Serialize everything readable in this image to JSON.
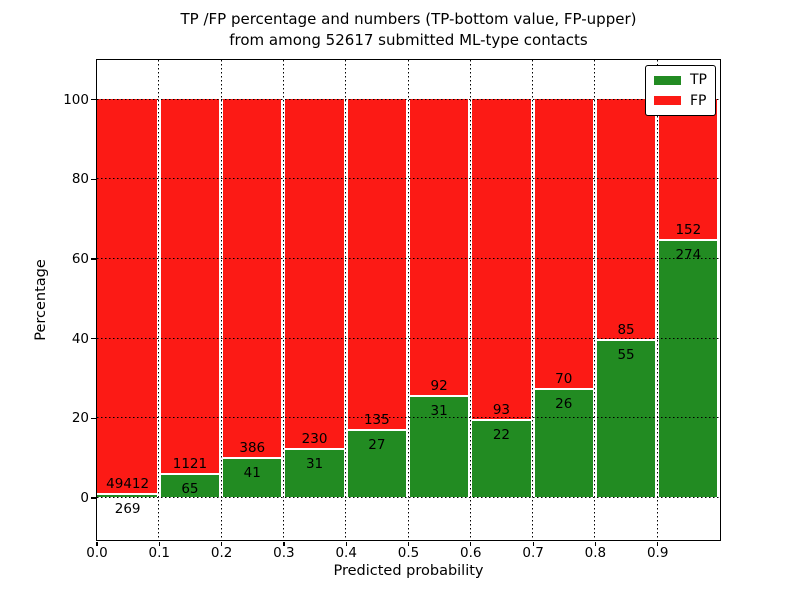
{
  "title": {
    "line1": "TP /FP percentage and numbers (TP-bottom value, FP-upper)",
    "line2": "from among 52617 submitted ML-type contacts"
  },
  "chart_data": {
    "type": "bar",
    "stacked": true,
    "total_submitted_contacts": 52617,
    "bin_width": 0.1,
    "x_bin_start": [
      0.0,
      0.1,
      0.2,
      0.3,
      0.4,
      0.5,
      0.6,
      0.7,
      0.8,
      0.9
    ],
    "series": [
      {
        "name": "TP",
        "color": "#228b22",
        "counts": [
          269,
          65,
          41,
          31,
          27,
          31,
          22,
          26,
          55,
          274
        ]
      },
      {
        "name": "FP",
        "color": "#fc1a15",
        "counts": [
          49412,
          1121,
          386,
          230,
          135,
          92,
          93,
          70,
          85,
          152
        ]
      }
    ],
    "tp_percent": [
      0.54,
      5.48,
      9.6,
      11.88,
      16.67,
      25.2,
      19.13,
      27.08,
      39.29,
      64.32
    ],
    "xlabel": "Predicted probability",
    "ylabel": "Percentage",
    "xlim": [
      0.0,
      1.0
    ],
    "ylim": [
      -10.6,
      110.0
    ],
    "xticks": [
      "0.0",
      "0.1",
      "0.2",
      "0.3",
      "0.4",
      "0.5",
      "0.6",
      "0.7",
      "0.8",
      "0.9"
    ],
    "yticks": [
      0,
      20,
      40,
      60,
      80,
      100
    ],
    "grid": true,
    "legend": {
      "position": "upper right",
      "entries": [
        {
          "label": "TP",
          "color": "#228b22"
        },
        {
          "label": "FP",
          "color": "#fc1a15"
        }
      ]
    }
  }
}
